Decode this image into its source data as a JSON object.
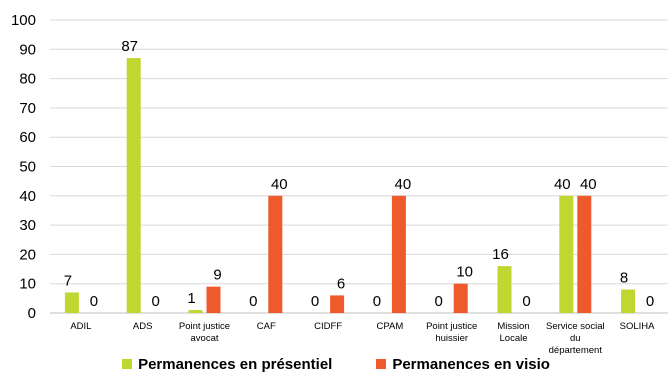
{
  "chart_data": {
    "type": "bar",
    "categories": [
      [
        "ADIL"
      ],
      [
        "ADS"
      ],
      [
        "Point justice",
        "avocat"
      ],
      [
        "CAF"
      ],
      [
        "CIDFF"
      ],
      [
        "CPAM"
      ],
      [
        "Point justice",
        "huissier"
      ],
      [
        "Mission",
        "Locale"
      ],
      [
        "Service social",
        "du",
        "département"
      ],
      [
        "SOLIHA"
      ]
    ],
    "series": [
      {
        "name": "Permanences en présentiel",
        "color": "#BFD730",
        "values": [
          7,
          87,
          1,
          0,
          0,
          0,
          0,
          16,
          40,
          8
        ]
      },
      {
        "name": "Permanences en visio",
        "color": "#EE5A2B",
        "values": [
          0,
          0,
          9,
          40,
          6,
          40,
          10,
          0,
          40,
          0
        ]
      }
    ],
    "ylim": [
      0,
      100
    ],
    "yticks": [
      0,
      10,
      20,
      30,
      40,
      50,
      60,
      70,
      80,
      90,
      100
    ],
    "grid": true,
    "legend_position": "bottom"
  }
}
